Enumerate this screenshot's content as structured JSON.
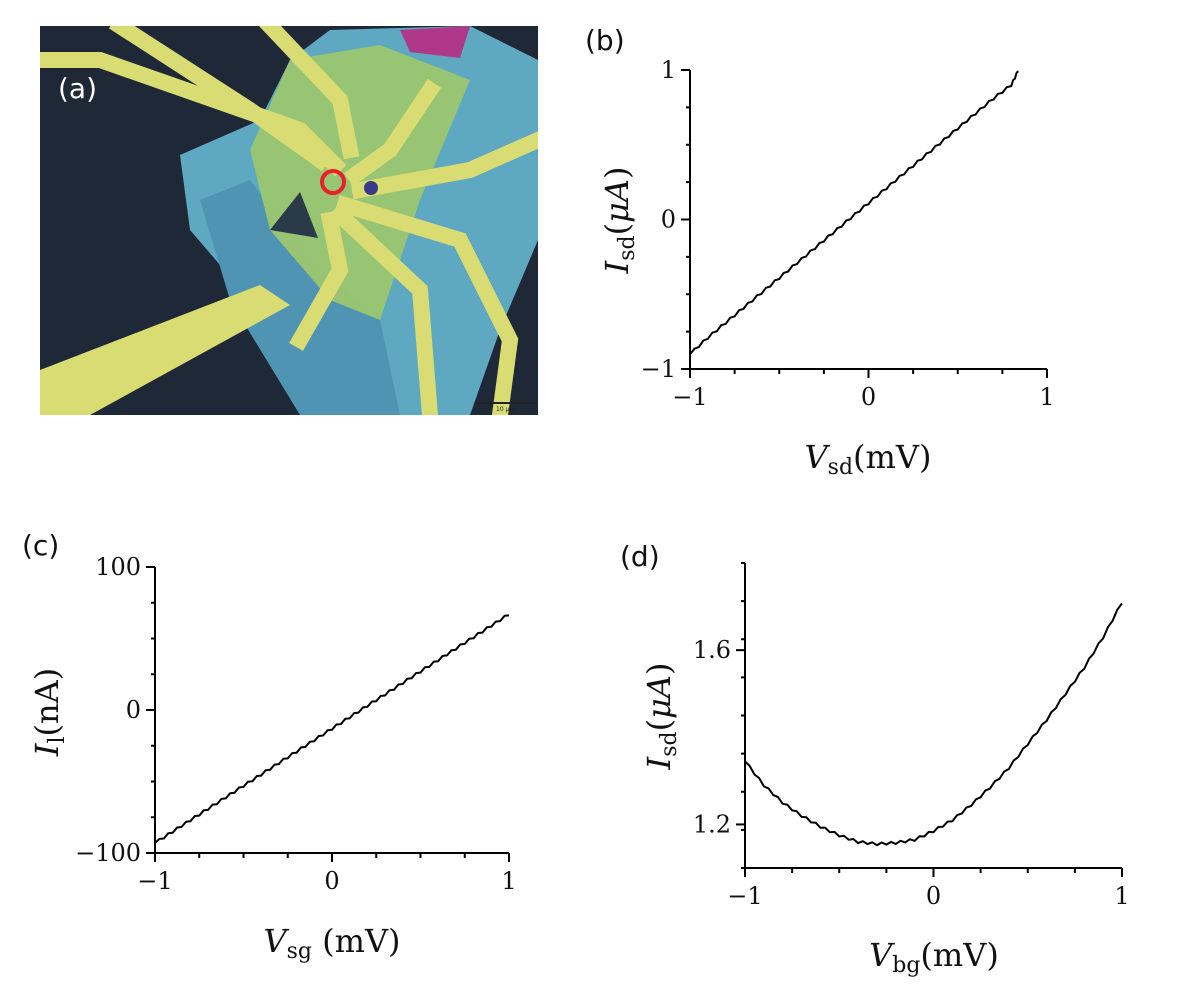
{
  "panels": {
    "a": {
      "label": "(a)"
    },
    "b": {
      "label": "(b)"
    },
    "c": {
      "label": "(c)"
    },
    "d": {
      "label": "(d)"
    }
  },
  "micrograph": {
    "scale_bar_text": "10 μm",
    "colors": {
      "background": "#1e2837",
      "substrate_blue": "#5fa8c2",
      "flake_green": "#9fc86a",
      "electrode_yellow": "#d8dc72",
      "purple_flake": "#b0388a",
      "marker_red": "#e8202a"
    }
  },
  "chart_data": [
    {
      "id": "b",
      "type": "line",
      "xlabel": {
        "sym": "V",
        "sub": "sd",
        "unit": "(mV)"
      },
      "ylabel": {
        "sym": "I",
        "sub": "sd",
        "unit_open": "(",
        "unit_mu": "μA",
        "unit_close": ")"
      },
      "xlim": [
        -1,
        1
      ],
      "ylim": [
        -1,
        1
      ],
      "xticks": [
        "−1",
        "0",
        "1"
      ],
      "yticks": [
        "−1",
        "0",
        "1"
      ],
      "x": [
        -1.0,
        -0.9,
        -0.8,
        -0.7,
        -0.6,
        -0.5,
        -0.4,
        -0.3,
        -0.2,
        -0.1,
        0.0,
        0.1,
        0.2,
        0.3,
        0.4,
        0.5,
        0.6,
        0.7,
        0.8,
        0.84
      ],
      "y": [
        -0.9,
        -0.79,
        -0.69,
        -0.59,
        -0.49,
        -0.39,
        -0.29,
        -0.19,
        -0.09,
        0.01,
        0.11,
        0.21,
        0.31,
        0.41,
        0.51,
        0.61,
        0.71,
        0.81,
        0.9,
        1.0
      ]
    },
    {
      "id": "c",
      "type": "line",
      "xlabel": {
        "sym": "V",
        "sub": "sg",
        "unit": " (mV)"
      },
      "ylabel": {
        "sym": "I",
        "sub": "l",
        "unit": "(nA)"
      },
      "xlim": [
        -1,
        1
      ],
      "ylim": [
        -100,
        100
      ],
      "xticks": [
        "−1",
        "0",
        "1"
      ],
      "yticks": [
        "−100",
        "0",
        "100"
      ],
      "x": [
        -1.0,
        -0.9,
        -0.8,
        -0.7,
        -0.6,
        -0.5,
        -0.4,
        -0.3,
        -0.2,
        -0.1,
        0.0,
        0.1,
        0.2,
        0.3,
        0.4,
        0.5,
        0.6,
        0.7,
        0.8,
        0.9,
        1.0
      ],
      "y": [
        -93,
        -85,
        -77,
        -69,
        -61,
        -53,
        -45,
        -37,
        -29,
        -21,
        -13,
        -5,
        3,
        11,
        19,
        27,
        35,
        43,
        51,
        59,
        67
      ]
    },
    {
      "id": "d",
      "type": "line",
      "xlabel": {
        "sym": "V",
        "sub": "bg",
        "unit": "(mV)"
      },
      "ylabel": {
        "sym": "I",
        "sub": "sd",
        "unit_open": "(",
        "unit_mu": "μA",
        "unit_close": ")"
      },
      "xlim": [
        -1,
        1
      ],
      "ylim": [
        1.1,
        1.8
      ],
      "xticks": [
        "−1",
        "0",
        "1"
      ],
      "yticks": [
        "1.2",
        "1.6"
      ],
      "yticks_at": [
        1.2,
        1.6
      ],
      "x": [
        -1.0,
        -0.9,
        -0.8,
        -0.7,
        -0.6,
        -0.5,
        -0.4,
        -0.3,
        -0.2,
        -0.1,
        0.0,
        0.1,
        0.2,
        0.3,
        0.4,
        0.5,
        0.6,
        0.7,
        0.8,
        0.9,
        1.0
      ],
      "y": [
        1.345,
        1.29,
        1.25,
        1.22,
        1.195,
        1.175,
        1.16,
        1.155,
        1.158,
        1.165,
        1.185,
        1.21,
        1.245,
        1.285,
        1.33,
        1.385,
        1.44,
        1.5,
        1.56,
        1.63,
        1.71
      ]
    }
  ]
}
